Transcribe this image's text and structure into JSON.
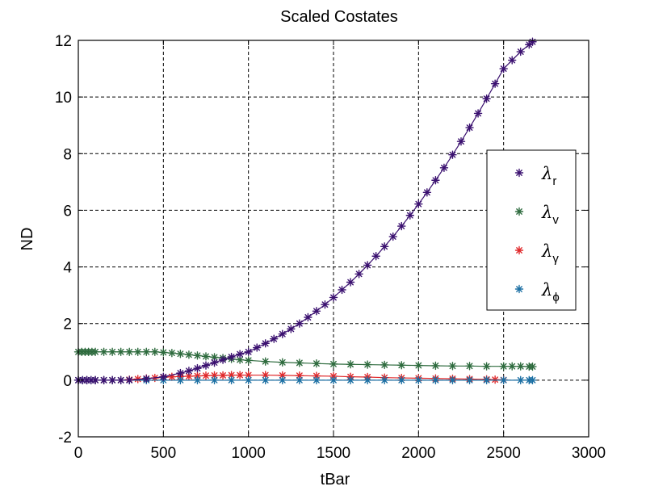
{
  "chart_data": {
    "type": "scatter",
    "title": "Scaled Costates",
    "xlabel": "tBar",
    "ylabel": "ND",
    "xlim": [
      0,
      3000
    ],
    "ylim": [
      -2,
      12
    ],
    "xticks": [
      "0",
      "500",
      "1000",
      "1500",
      "2000",
      "2500",
      "3000"
    ],
    "yticks": [
      "-2",
      "0",
      "2",
      "4",
      "6",
      "8",
      "10",
      "12"
    ],
    "grid": true,
    "legend_position": "right",
    "marker": "asterisk",
    "series": [
      {
        "name": "λr",
        "symbol": "λ",
        "subscript": "r",
        "color": "#3b1170",
        "x": [
          0,
          25,
          50,
          75,
          100,
          150,
          200,
          250,
          300,
          400,
          500,
          600,
          650,
          700,
          750,
          800,
          850,
          900,
          950,
          1000,
          1050,
          1100,
          1150,
          1200,
          1250,
          1300,
          1350,
          1400,
          1450,
          1500,
          1550,
          1600,
          1650,
          1700,
          1750,
          1800,
          1850,
          1900,
          1950,
          2000,
          2050,
          2100,
          2150,
          2200,
          2250,
          2300,
          2350,
          2400,
          2450,
          2500,
          2550,
          2600,
          2650,
          2670
        ],
        "y": [
          0.0,
          0.0,
          0.0,
          0.0,
          0.0,
          0.0,
          0.0,
          0.0,
          0.0,
          0.05,
          0.12,
          0.25,
          0.33,
          0.42,
          0.52,
          0.62,
          0.72,
          0.82,
          0.92,
          1.0,
          1.15,
          1.3,
          1.46,
          1.63,
          1.81,
          2.0,
          2.22,
          2.44,
          2.67,
          2.92,
          3.19,
          3.46,
          3.75,
          4.06,
          4.38,
          4.72,
          5.07,
          5.44,
          5.82,
          6.22,
          6.63,
          7.06,
          7.5,
          7.96,
          8.43,
          8.92,
          9.42,
          9.94,
          10.47,
          11.0,
          11.3,
          11.6,
          11.85,
          11.95
        ]
      },
      {
        "name": "λv",
        "symbol": "λ",
        "subscript": "v",
        "color": "#2e6b3e",
        "x": [
          0,
          20,
          40,
          60,
          80,
          100,
          150,
          200,
          250,
          300,
          350,
          400,
          450,
          500,
          550,
          600,
          650,
          700,
          750,
          800,
          850,
          900,
          950,
          1000,
          1100,
          1200,
          1300,
          1400,
          1500,
          1600,
          1700,
          1800,
          1900,
          2000,
          2100,
          2200,
          2300,
          2400,
          2500,
          2550,
          2600,
          2650,
          2670
        ],
        "y": [
          1.0,
          1.0,
          1.0,
          1.0,
          1.0,
          1.0,
          1.0,
          1.0,
          1.0,
          1.0,
          1.0,
          1.0,
          1.0,
          0.98,
          0.96,
          0.93,
          0.9,
          0.87,
          0.84,
          0.81,
          0.78,
          0.75,
          0.72,
          0.7,
          0.66,
          0.63,
          0.61,
          0.59,
          0.57,
          0.56,
          0.55,
          0.54,
          0.53,
          0.52,
          0.51,
          0.5,
          0.5,
          0.49,
          0.49,
          0.49,
          0.49,
          0.48,
          0.48
        ]
      },
      {
        "name": "λγ",
        "symbol": "λ",
        "subscript": "γ",
        "color": "#e0282a",
        "x": [
          0,
          50,
          100,
          150,
          200,
          250,
          300,
          350,
          400,
          450,
          500,
          550,
          600,
          650,
          700,
          750,
          800,
          850,
          900,
          950,
          1000,
          1100,
          1200,
          1300,
          1400,
          1500,
          1600,
          1700,
          1800,
          1900,
          2000,
          2100,
          2200,
          2300,
          2400,
          2450,
          2500
        ],
        "y": [
          0.0,
          0.0,
          0.0,
          0.0,
          0.0,
          0.0,
          0.02,
          0.04,
          0.06,
          0.08,
          0.1,
          0.12,
          0.13,
          0.14,
          0.15,
          0.16,
          0.17,
          0.17,
          0.18,
          0.18,
          0.18,
          0.18,
          0.17,
          0.16,
          0.15,
          0.14,
          0.12,
          0.11,
          0.09,
          0.08,
          0.07,
          0.06,
          0.05,
          0.04,
          0.03,
          0.02,
          0.01
        ]
      },
      {
        "name": "λϕ",
        "symbol": "λ",
        "subscript": "ϕ",
        "color": "#1b6fa3",
        "x": [
          0,
          25,
          50,
          75,
          100,
          150,
          200,
          250,
          300,
          400,
          500,
          600,
          700,
          800,
          900,
          1000,
          1100,
          1200,
          1300,
          1400,
          1500,
          1600,
          1700,
          1800,
          1900,
          2000,
          2100,
          2200,
          2300,
          2400,
          2500,
          2600,
          2650,
          2670
        ],
        "y": [
          0.0,
          0.0,
          0.0,
          0.0,
          0.0,
          0.0,
          0.0,
          0.0,
          0.0,
          0.0,
          0.0,
          0.0,
          0.0,
          0.0,
          0.0,
          0.0,
          0.0,
          0.0,
          0.0,
          0.0,
          0.0,
          0.0,
          0.0,
          0.0,
          0.0,
          0.0,
          0.0,
          0.0,
          0.0,
          0.0,
          0.0,
          0.0,
          0.0,
          0.0
        ]
      }
    ]
  }
}
